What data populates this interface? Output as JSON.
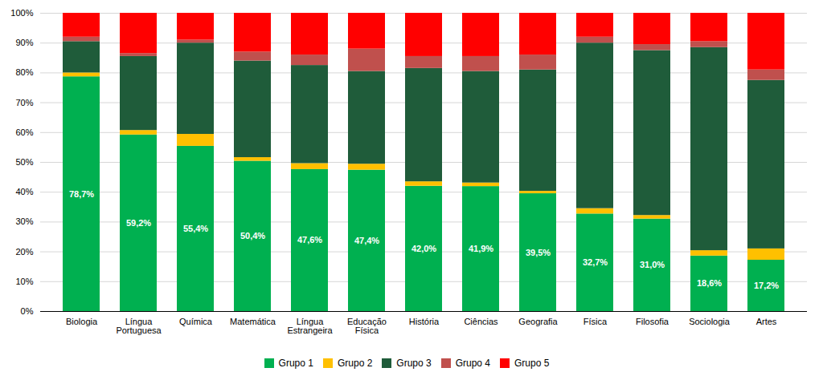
{
  "chart_data": {
    "type": "bar",
    "stacked": true,
    "grid": true,
    "categories": [
      "Biologia",
      "Língua\nPortuguesa",
      "Química",
      "Matemática",
      "Língua\nEstrangeira",
      "Educação\nFísica",
      "História",
      "Ciências",
      "Geografia",
      "Física",
      "Filosofia",
      "Sociologia",
      "Artes"
    ],
    "series": [
      {
        "name": "Grupo 1",
        "color": "#00b050",
        "values": [
          78.7,
          59.2,
          55.4,
          50.4,
          47.6,
          47.4,
          42.0,
          41.9,
          39.5,
          32.7,
          31.0,
          18.6,
          17.2
        ],
        "value_labels": [
          "78,7%",
          "59,2%",
          "55,4%",
          "50,4%",
          "47,6%",
          "47,4%",
          "42,0%",
          "41,9%",
          "39,5%",
          "32,7%",
          "31,0%",
          "18,6%",
          "17,2%"
        ]
      },
      {
        "name": "Grupo 2",
        "color": "#ffc000",
        "values": [
          1.3,
          1.5,
          4.0,
          1.2,
          2.0,
          2.0,
          1.5,
          1.2,
          0.8,
          1.8,
          1.2,
          1.8,
          3.8
        ]
      },
      {
        "name": "Grupo 3",
        "color": "#1f5c3a",
        "values": [
          10.5,
          24.8,
          30.6,
          32.4,
          32.9,
          31.1,
          38.0,
          37.4,
          40.7,
          55.5,
          55.3,
          68.1,
          56.5
        ]
      },
      {
        "name": "Grupo 4",
        "color": "#c0504d",
        "values": [
          1.5,
          1.0,
          1.0,
          3.0,
          3.5,
          7.5,
          4.0,
          5.0,
          5.0,
          2.0,
          2.0,
          2.0,
          3.5
        ]
      },
      {
        "name": "Grupo 5",
        "color": "#ff0000",
        "values": [
          8.0,
          13.5,
          9.0,
          13.0,
          14.0,
          12.0,
          14.5,
          14.5,
          14.0,
          8.0,
          10.5,
          9.5,
          19.0
        ]
      }
    ],
    "ylim": [
      0,
      100
    ],
    "yticks": [
      {
        "value": 0,
        "label": "0%"
      },
      {
        "value": 10,
        "label": "10%"
      },
      {
        "value": 20,
        "label": "20%"
      },
      {
        "value": 30,
        "label": "30%"
      },
      {
        "value": 40,
        "label": "40%"
      },
      {
        "value": 50,
        "label": "50%"
      },
      {
        "value": 60,
        "label": "60%"
      },
      {
        "value": 70,
        "label": "70%"
      },
      {
        "value": 80,
        "label": "80%"
      },
      {
        "value": 90,
        "label": "90%"
      },
      {
        "value": 100,
        "label": "100%"
      }
    ]
  }
}
